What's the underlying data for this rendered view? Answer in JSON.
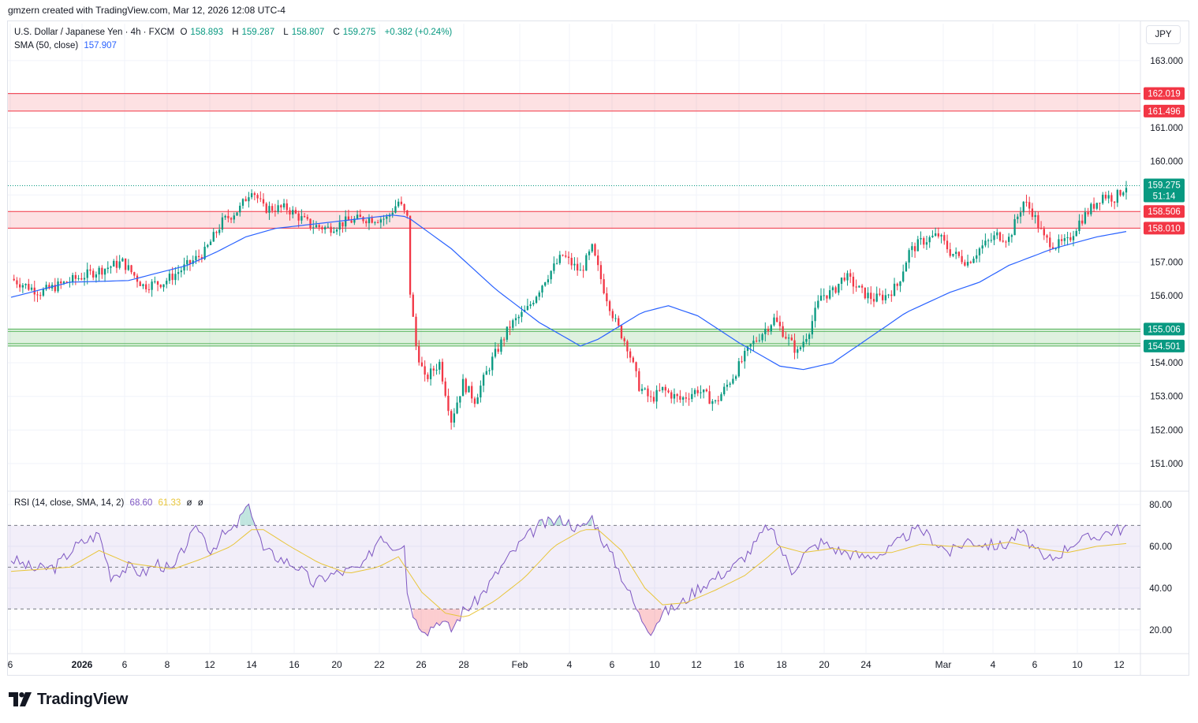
{
  "header": {
    "attribution": "gmzern created with TradingView.com, Mar 12, 2026 12:08 UTC-4"
  },
  "legend": {
    "symbol": "U.S. Dollar / Japanese Yen · 4h · FXCM",
    "open_label": "O",
    "open": "158.893",
    "high_label": "H",
    "high": "159.287",
    "low_label": "L",
    "low": "158.807",
    "close_label": "C",
    "close": "159.275",
    "change": "+0.382 (+0.24%)",
    "sma_label": "SMA (50, close)",
    "sma_value": "157.907",
    "rsi_label": "RSI (14, close, SMA, 14, 2)",
    "rsi_value": "68.60",
    "rsi_ma": "61.33",
    "rsi_extra1": "ø",
    "rsi_extra2": "ø"
  },
  "currency": "JPY",
  "brand": "TradingView",
  "colors": {
    "up": "#089981",
    "down": "#f23645",
    "sma": "#2962ff",
    "rsi": "#7e57c2",
    "rsi_ma": "#e8c53a",
    "resistance_zone": "#f23645",
    "support_zone": "#4caf50"
  },
  "chart_data": [
    {
      "type": "candlestick",
      "title": "U.S. Dollar / Japanese Yen · 4h · FXCM",
      "ylim": [
        150.2,
        164.1
      ],
      "yticks": [
        "163.000",
        "162.000",
        "161.000",
        "160.000",
        "159.000",
        "158.000",
        "157.000",
        "156.000",
        "155.000",
        "154.000",
        "153.000",
        "152.000",
        "151.000"
      ],
      "xticks": [
        "6",
        "2026",
        "6",
        "8",
        "12",
        "14",
        "16",
        "20",
        "22",
        "26",
        "28",
        "Feb",
        "4",
        "6",
        "10",
        "12",
        "16",
        "18",
        "20",
        "24",
        "Mar",
        "4",
        "6",
        "10",
        "12"
      ],
      "price_path": [
        [
          0,
          156.5
        ],
        [
          10,
          156.1
        ],
        [
          25,
          156.6
        ],
        [
          38,
          157.0
        ],
        [
          45,
          156.3
        ],
        [
          52,
          156.4
        ],
        [
          60,
          156.9
        ],
        [
          66,
          157.3
        ],
        [
          72,
          158.2
        ],
        [
          78,
          158.6
        ],
        [
          82,
          159.2
        ],
        [
          86,
          158.6
        ],
        [
          94,
          158.6
        ],
        [
          102,
          158.1
        ],
        [
          108,
          158.0
        ],
        [
          114,
          158.2
        ],
        [
          120,
          158.3
        ],
        [
          128,
          158.3
        ],
        [
          132,
          158.8
        ],
        [
          135,
          158.3
        ],
        [
          136,
          156.1
        ],
        [
          138,
          154.5
        ],
        [
          141,
          153.5
        ],
        [
          146,
          154.0
        ],
        [
          150,
          152.3
        ],
        [
          154,
          153.4
        ],
        [
          158,
          152.9
        ],
        [
          164,
          154.1
        ],
        [
          170,
          155.1
        ],
        [
          176,
          155.6
        ],
        [
          182,
          156.5
        ],
        [
          188,
          157.2
        ],
        [
          194,
          156.7
        ],
        [
          198,
          157.4
        ],
        [
          202,
          156.2
        ],
        [
          206,
          155.2
        ],
        [
          210,
          154.5
        ],
        [
          214,
          153.3
        ],
        [
          218,
          152.9
        ],
        [
          222,
          153.2
        ],
        [
          228,
          152.9
        ],
        [
          234,
          153.2
        ],
        [
          240,
          152.8
        ],
        [
          246,
          153.6
        ],
        [
          252,
          154.5
        ],
        [
          256,
          154.9
        ],
        [
          260,
          155.3
        ],
        [
          264,
          154.8
        ],
        [
          268,
          154.3
        ],
        [
          272,
          155.0
        ],
        [
          276,
          156.0
        ],
        [
          280,
          156.1
        ],
        [
          284,
          156.6
        ],
        [
          290,
          156.1
        ],
        [
          294,
          155.9
        ],
        [
          298,
          156.0
        ],
        [
          302,
          156.3
        ],
        [
          306,
          157.3
        ],
        [
          310,
          157.6
        ],
        [
          316,
          157.8
        ],
        [
          320,
          157.3
        ],
        [
          326,
          157.0
        ],
        [
          330,
          157.4
        ],
        [
          336,
          157.8
        ],
        [
          340,
          157.7
        ],
        [
          345,
          158.8
        ],
        [
          348,
          158.5
        ],
        [
          352,
          157.7
        ],
        [
          356,
          157.5
        ],
        [
          360,
          157.6
        ],
        [
          364,
          158.2
        ],
        [
          368,
          158.6
        ],
        [
          372,
          159.0
        ],
        [
          376,
          158.9
        ],
        [
          380,
          159.28
        ]
      ],
      "sma_path": [
        [
          0,
          155.95
        ],
        [
          20,
          156.4
        ],
        [
          40,
          156.45
        ],
        [
          60,
          156.9
        ],
        [
          70,
          157.3
        ],
        [
          80,
          157.75
        ],
        [
          90,
          158.0
        ],
        [
          110,
          158.2
        ],
        [
          130,
          158.4
        ],
        [
          135,
          158.35
        ],
        [
          150,
          157.4
        ],
        [
          165,
          156.2
        ],
        [
          180,
          155.2
        ],
        [
          194,
          154.5
        ],
        [
          200,
          154.7
        ],
        [
          215,
          155.5
        ],
        [
          224,
          155.7
        ],
        [
          234,
          155.4
        ],
        [
          248,
          154.6
        ],
        [
          262,
          153.9
        ],
        [
          270,
          153.8
        ],
        [
          280,
          154.0
        ],
        [
          290,
          154.6
        ],
        [
          305,
          155.5
        ],
        [
          320,
          156.1
        ],
        [
          330,
          156.4
        ],
        [
          340,
          156.9
        ],
        [
          355,
          157.4
        ],
        [
          370,
          157.75
        ],
        [
          380,
          157.91
        ]
      ],
      "zones": [
        {
          "top": 162.019,
          "bottom": 161.496,
          "kind": "resistance"
        },
        {
          "top": 158.506,
          "bottom": 158.01,
          "kind": "resistance"
        },
        {
          "top": 155.006,
          "bottom": 154.501,
          "kind": "support"
        }
      ],
      "zone_labels": [
        "162.019",
        "161.496",
        "158.506",
        "158.010",
        "155.006",
        "154.501"
      ],
      "last_price": {
        "value": "159.275",
        "countdown": "51:14"
      }
    },
    {
      "type": "line",
      "title": "RSI (14, close, SMA, 14, 2)",
      "ylim": [
        9,
        86
      ],
      "yticks": [
        "80.00",
        "60.00",
        "40.00",
        "20.00"
      ],
      "bands": {
        "upper": 70,
        "middle": 50,
        "lower": 30
      },
      "rsi_path": [
        [
          0,
          54
        ],
        [
          8,
          49
        ],
        [
          15,
          50
        ],
        [
          22,
          60
        ],
        [
          30,
          66
        ],
        [
          34,
          46
        ],
        [
          40,
          50
        ],
        [
          45,
          47
        ],
        [
          50,
          52
        ],
        [
          55,
          48
        ],
        [
          60,
          62
        ],
        [
          64,
          69
        ],
        [
          68,
          58
        ],
        [
          72,
          65
        ],
        [
          76,
          68
        ],
        [
          80,
          78
        ],
        [
          82,
          77
        ],
        [
          86,
          58
        ],
        [
          92,
          54
        ],
        [
          98,
          50
        ],
        [
          103,
          42
        ],
        [
          108,
          46
        ],
        [
          114,
          48
        ],
        [
          120,
          50
        ],
        [
          126,
          66
        ],
        [
          130,
          60
        ],
        [
          134,
          62
        ],
        [
          135,
          38
        ],
        [
          138,
          24
        ],
        [
          142,
          20
        ],
        [
          146,
          25
        ],
        [
          150,
          20
        ],
        [
          154,
          29
        ],
        [
          158,
          33
        ],
        [
          162,
          40
        ],
        [
          168,
          52
        ],
        [
          174,
          62
        ],
        [
          180,
          70
        ],
        [
          188,
          73
        ],
        [
          194,
          68
        ],
        [
          198,
          74
        ],
        [
          202,
          62
        ],
        [
          206,
          52
        ],
        [
          210,
          40
        ],
        [
          214,
          27
        ],
        [
          218,
          20
        ],
        [
          222,
          28
        ],
        [
          228,
          32
        ],
        [
          234,
          40
        ],
        [
          240,
          45
        ],
        [
          246,
          50
        ],
        [
          252,
          58
        ],
        [
          258,
          70
        ],
        [
          262,
          60
        ],
        [
          266,
          48
        ],
        [
          270,
          56
        ],
        [
          276,
          62
        ],
        [
          282,
          58
        ],
        [
          290,
          55
        ],
        [
          298,
          57
        ],
        [
          306,
          66
        ],
        [
          310,
          68
        ],
        [
          316,
          61
        ],
        [
          320,
          57
        ],
        [
          326,
          63
        ],
        [
          332,
          61
        ],
        [
          338,
          60
        ],
        [
          344,
          67
        ],
        [
          348,
          60
        ],
        [
          352,
          53
        ],
        [
          356,
          55
        ],
        [
          362,
          62
        ],
        [
          368,
          64
        ],
        [
          372,
          66
        ],
        [
          376,
          68
        ],
        [
          380,
          68.6
        ]
      ],
      "ma_path": [
        [
          0,
          48
        ],
        [
          20,
          50
        ],
        [
          30,
          58
        ],
        [
          40,
          52
        ],
        [
          55,
          49
        ],
        [
          65,
          54
        ],
        [
          75,
          60
        ],
        [
          82,
          68
        ],
        [
          86,
          68
        ],
        [
          95,
          60
        ],
        [
          105,
          52
        ],
        [
          115,
          47
        ],
        [
          125,
          50
        ],
        [
          132,
          55
        ],
        [
          140,
          38
        ],
        [
          148,
          28
        ],
        [
          155,
          26
        ],
        [
          165,
          34
        ],
        [
          175,
          45
        ],
        [
          185,
          60
        ],
        [
          195,
          68
        ],
        [
          200,
          68
        ],
        [
          208,
          58
        ],
        [
          216,
          40
        ],
        [
          222,
          32
        ],
        [
          230,
          33
        ],
        [
          240,
          39
        ],
        [
          250,
          46
        ],
        [
          258,
          55
        ],
        [
          262,
          60
        ],
        [
          270,
          57
        ],
        [
          280,
          59
        ],
        [
          290,
          57
        ],
        [
          300,
          57
        ],
        [
          310,
          61
        ],
        [
          320,
          60
        ],
        [
          330,
          60
        ],
        [
          340,
          62
        ],
        [
          350,
          59
        ],
        [
          360,
          57
        ],
        [
          370,
          60
        ],
        [
          380,
          61.3
        ]
      ]
    }
  ]
}
